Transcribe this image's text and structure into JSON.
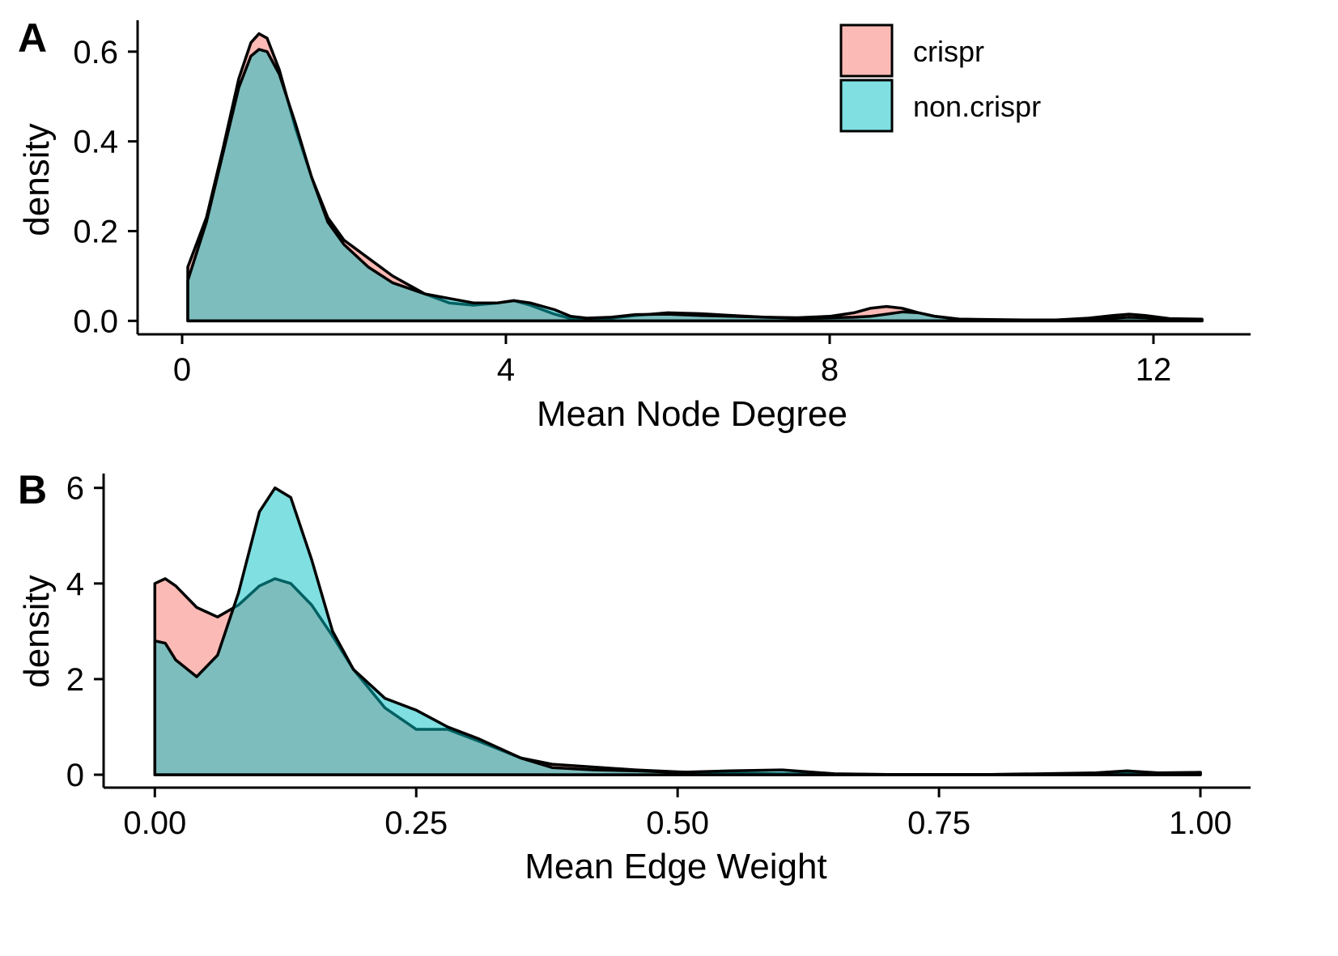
{
  "colors": {
    "crispr": "#F8766D",
    "non_crispr": "#00BFC4",
    "outline": "#000000"
  },
  "legend": {
    "placement": "top-right",
    "entries": [
      "crispr",
      "non.crispr"
    ]
  },
  "chart_data": [
    {
      "panel": "A",
      "type": "area",
      "xlabel": "Mean Node Degree",
      "ylabel": "density",
      "xlim": [
        -0.55,
        13.2
      ],
      "ylim": [
        -0.03,
        0.67
      ],
      "xticks": [
        0,
        4,
        8,
        12
      ],
      "xtick_labels": [
        "0",
        "4",
        "8",
        "12"
      ],
      "yticks": [
        0,
        0.2,
        0.4,
        0.6
      ],
      "ytick_labels": [
        "0.0",
        "0.2",
        "0.4",
        "0.6"
      ],
      "series": [
        {
          "name": "crispr",
          "x": [
            0.07,
            0.3,
            0.5,
            0.7,
            0.85,
            0.95,
            1.05,
            1.2,
            1.4,
            1.6,
            1.8,
            2.0,
            2.3,
            2.6,
            3.0,
            3.3,
            3.6,
            3.9,
            4.1,
            4.3,
            4.6,
            4.8,
            5.0,
            5.3,
            5.6,
            6.0,
            6.4,
            6.8,
            7.2,
            7.6,
            8.0,
            8.3,
            8.5,
            8.7,
            8.9,
            9.1,
            9.3,
            9.6,
            10.0,
            10.4,
            10.8,
            11.2,
            11.5,
            11.7,
            11.9,
            12.2,
            12.6
          ],
          "y": [
            0.12,
            0.23,
            0.38,
            0.54,
            0.62,
            0.64,
            0.63,
            0.56,
            0.43,
            0.32,
            0.23,
            0.18,
            0.14,
            0.1,
            0.06,
            0.04,
            0.035,
            0.04,
            0.045,
            0.035,
            0.015,
            0.005,
            0.003,
            0.006,
            0.012,
            0.018,
            0.016,
            0.012,
            0.008,
            0.007,
            0.01,
            0.018,
            0.028,
            0.032,
            0.028,
            0.018,
            0.01,
            0.004,
            0.003,
            0.002,
            0.002,
            0.006,
            0.012,
            0.015,
            0.012,
            0.005,
            0.004
          ]
        },
        {
          "name": "non.crispr",
          "x": [
            0.07,
            0.3,
            0.5,
            0.7,
            0.85,
            0.95,
            1.05,
            1.2,
            1.4,
            1.6,
            1.8,
            2.0,
            2.3,
            2.6,
            3.0,
            3.3,
            3.6,
            3.9,
            4.1,
            4.3,
            4.6,
            4.8,
            5.0,
            5.3,
            5.6,
            6.0,
            6.4,
            6.8,
            7.2,
            7.6,
            8.0,
            8.3,
            8.5,
            8.7,
            8.9,
            9.1,
            9.3,
            9.6,
            10.0,
            10.4,
            10.8,
            11.2,
            11.5,
            11.7,
            11.9,
            12.2,
            12.6
          ],
          "y": [
            0.09,
            0.22,
            0.37,
            0.52,
            0.59,
            0.605,
            0.6,
            0.55,
            0.44,
            0.32,
            0.22,
            0.17,
            0.12,
            0.085,
            0.06,
            0.05,
            0.04,
            0.04,
            0.045,
            0.04,
            0.025,
            0.01,
            0.006,
            0.008,
            0.014,
            0.015,
            0.012,
            0.01,
            0.008,
            0.006,
            0.007,
            0.008,
            0.01,
            0.015,
            0.02,
            0.018,
            0.01,
            0.004,
            0.002,
            0.002,
            0.002,
            0.003,
            0.006,
            0.008,
            0.007,
            0.004,
            0.003
          ]
        }
      ]
    },
    {
      "panel": "B",
      "type": "area",
      "xlabel": "Mean Edge Weight",
      "ylabel": "density",
      "xlim": [
        -0.049,
        1.048
      ],
      "ylim": [
        -0.27,
        6.3
      ],
      "xticks": [
        0,
        0.25,
        0.5,
        0.75,
        1.0
      ],
      "xtick_labels": [
        "0.00",
        "0.25",
        "0.50",
        "0.75",
        "1.00"
      ],
      "yticks": [
        0,
        2,
        4,
        6
      ],
      "ytick_labels": [
        "0",
        "2",
        "4",
        "6"
      ],
      "series": [
        {
          "name": "crispr",
          "x": [
            0.0,
            0.01,
            0.02,
            0.04,
            0.06,
            0.08,
            0.1,
            0.115,
            0.13,
            0.15,
            0.17,
            0.19,
            0.22,
            0.25,
            0.28,
            0.31,
            0.35,
            0.38,
            0.42,
            0.46,
            0.5,
            0.55,
            0.6,
            0.65,
            0.7,
            0.8,
            0.9,
            0.93,
            0.96,
            1.0
          ],
          "y": [
            4.0,
            4.1,
            3.95,
            3.5,
            3.3,
            3.55,
            3.95,
            4.1,
            4.0,
            3.55,
            2.9,
            2.2,
            1.4,
            0.95,
            0.95,
            0.7,
            0.35,
            0.22,
            0.16,
            0.1,
            0.06,
            0.03,
            0.02,
            0.01,
            0.005,
            0.005,
            0.02,
            0.03,
            0.02,
            0.05
          ]
        },
        {
          "name": "non.crispr",
          "x": [
            0.0,
            0.01,
            0.02,
            0.04,
            0.06,
            0.08,
            0.1,
            0.115,
            0.13,
            0.15,
            0.17,
            0.19,
            0.22,
            0.25,
            0.28,
            0.31,
            0.35,
            0.38,
            0.42,
            0.46,
            0.5,
            0.55,
            0.6,
            0.65,
            0.7,
            0.8,
            0.9,
            0.93,
            0.96,
            1.0
          ],
          "y": [
            2.8,
            2.75,
            2.4,
            2.05,
            2.5,
            3.8,
            5.5,
            6.0,
            5.8,
            4.5,
            3.0,
            2.2,
            1.6,
            1.35,
            1.0,
            0.75,
            0.35,
            0.15,
            0.1,
            0.08,
            0.05,
            0.08,
            0.1,
            0.02,
            0.005,
            0.005,
            0.04,
            0.08,
            0.04,
            0.05
          ]
        }
      ]
    }
  ]
}
